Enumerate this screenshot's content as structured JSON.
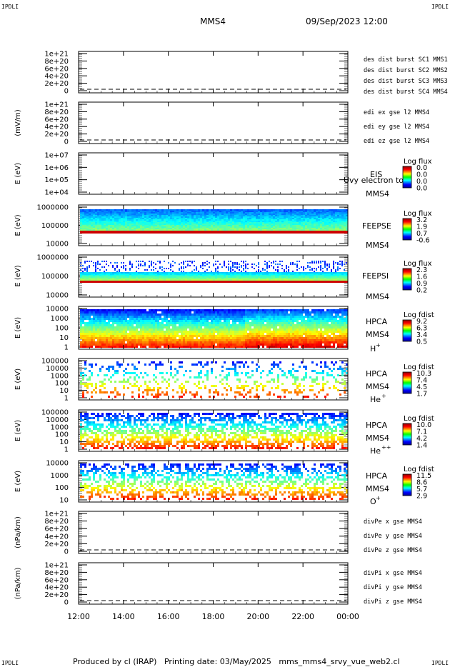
{
  "header": {
    "corner_left": "IPDLI",
    "corner_right": "IPDLI",
    "title": "MMS4",
    "date": "09/Sep/2023 12:00"
  },
  "footer": {
    "corner_left": "IPDLI",
    "corner_right": "IPDLI",
    "text": "Produced by cl (IRAP)   Printing date: 03/May/2025   mms_mms4_srvy_vue_web2.cl"
  },
  "colors": {
    "blue": "#0000cc",
    "magenta": "#cc00cc",
    "red": "#cc0000",
    "green": "#00cc00"
  },
  "chart_data": [
    {
      "type": "line",
      "title": "",
      "ylabel": "",
      "yticks": [
        "1e+21",
        "8e+20",
        "6e+20",
        "4e+20",
        "2e+20",
        "0"
      ],
      "legend": [
        {
          "text": "des dist burst SC1 MMS1",
          "color": "#0000cc"
        },
        {
          "text": "des dist burst SC2 MMS2",
          "color": "#cc00cc"
        },
        {
          "text": "des dist burst SC3 MMS3",
          "color": "#cc0000"
        },
        {
          "text": "des dist burst SC4 MMS4",
          "color": "#00cc00"
        }
      ],
      "x": [
        "12:00",
        "14:00",
        "16:00",
        "18:00",
        "20:00",
        "22:00",
        "00:00"
      ]
    },
    {
      "type": "line",
      "ylabel": "(mV/m)",
      "yticks": [
        "1e+21",
        "8e+20",
        "6e+20",
        "4e+20",
        "2e+20",
        "0"
      ],
      "legend": [
        {
          "text": "edi ex gse l2 MMS4",
          "color": "#cc0000"
        },
        {
          "text": "edi ey gse l2 MMS4",
          "color": "#00cc00"
        },
        {
          "text": "edi ez gse l2 MMS4",
          "color": "#0000cc"
        }
      ]
    },
    {
      "type": "heatmap",
      "ylabel": "E (eV)",
      "yticks": [
        "1e+07",
        "1e+06",
        "1e+05",
        "1e+04"
      ],
      "instrument": "EIS",
      "sublabel": "MMS4",
      "overlay_text": "Ùvy electron to",
      "colorbar_title": "Log flux",
      "colorbar_ticks": [
        "0.0",
        "0.0",
        "0.0",
        "0.0"
      ]
    },
    {
      "type": "heatmap",
      "ylabel": "E (eV)",
      "yticks": [
        "1000000",
        "100000",
        "10000"
      ],
      "instrument": "FEEPSE",
      "sublabel": "MMS4",
      "colorbar_title": "Log flux",
      "colorbar_ticks": [
        "3.2",
        "1.9",
        "0.7",
        "-0.6"
      ]
    },
    {
      "type": "heatmap",
      "ylabel": "E (eV)",
      "yticks": [
        "1000000",
        "100000",
        "10000"
      ],
      "instrument": "FEEPSI",
      "sublabel": "MMS4",
      "colorbar_title": "Log flux",
      "colorbar_ticks": [
        "2.3",
        "1.6",
        "0.9",
        "0.2"
      ]
    },
    {
      "type": "heatmap",
      "ylabel": "E (eV)",
      "yticks": [
        "10000",
        "1000",
        "100",
        "10",
        "1"
      ],
      "instrument": "HPCA",
      "sublabel": "MMS4",
      "species": "H",
      "species_sup": "+",
      "colorbar_title": "Log fdist",
      "colorbar_ticks": [
        "9.2",
        "6.3",
        "3.4",
        "0.5"
      ]
    },
    {
      "type": "heatmap",
      "ylabel": "E (eV)",
      "yticks": [
        "100000",
        "10000",
        "1000",
        "100",
        "10",
        "1"
      ],
      "instrument": "HPCA",
      "sublabel": "MMS4",
      "species": "He",
      "species_sup": "+",
      "colorbar_title": "Log fdist",
      "colorbar_ticks": [
        "10.3",
        "7.4",
        "4.5",
        "1.7"
      ]
    },
    {
      "type": "heatmap",
      "ylabel": "E (eV)",
      "yticks": [
        "100000",
        "10000",
        "1000",
        "100",
        "10",
        "1"
      ],
      "instrument": "HPCA",
      "sublabel": "MMS4",
      "species": "He",
      "species_sup": "++",
      "colorbar_title": "Log fdist",
      "colorbar_ticks": [
        "10.0",
        "7.1",
        "4.2",
        "1.4"
      ]
    },
    {
      "type": "heatmap",
      "ylabel": "E (eV)",
      "yticks": [
        "10000",
        "1000",
        "100",
        "10"
      ],
      "instrument": "HPCA",
      "sublabel": "MMS4",
      "species": "O",
      "species_sup": "+",
      "colorbar_title": "Log fdist",
      "colorbar_ticks": [
        "11.5",
        "8.6",
        "5.7",
        "2.9"
      ]
    },
    {
      "type": "line",
      "ylabel": "(nPa/km)",
      "yticks": [
        "1e+21",
        "8e+20",
        "6e+20",
        "4e+20",
        "2e+20",
        "0"
      ],
      "legend": [
        {
          "text": "divPe x gse MMS4",
          "color": "#cc0000"
        },
        {
          "text": "divPe y gse MMS4",
          "color": "#00cc00"
        },
        {
          "text": "divPe z gse MMS4",
          "color": "#0000cc"
        }
      ]
    },
    {
      "type": "line",
      "ylabel": "(nPa/km)",
      "yticks": [
        "1e+21",
        "8e+20",
        "6e+20",
        "4e+20",
        "2e+20",
        "0"
      ],
      "legend": [
        {
          "text": "divPi x gse MMS4",
          "color": "#cc0000"
        },
        {
          "text": "divPi y gse MMS4",
          "color": "#00cc00"
        },
        {
          "text": "divPi z gse MMS4",
          "color": "#0000cc"
        }
      ],
      "xticks": [
        "12:00",
        "14:00",
        "16:00",
        "18:00",
        "20:00",
        "22:00",
        "00:00"
      ]
    }
  ]
}
